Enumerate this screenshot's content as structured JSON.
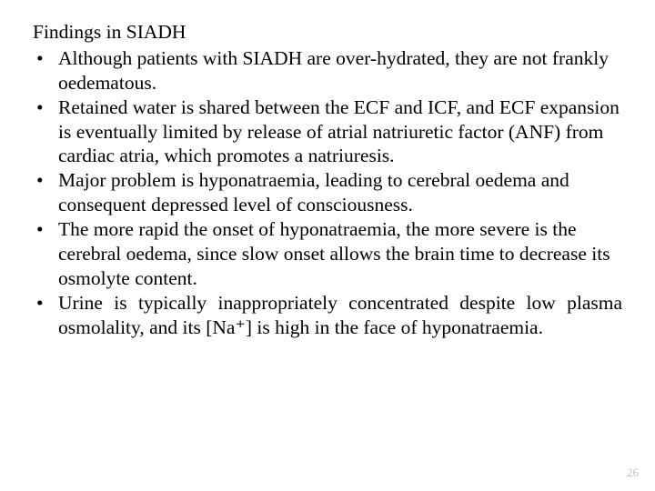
{
  "text_color": "#000000",
  "background_color": "#ffffff",
  "page_number_color": "#bfbfbf",
  "font_family": "Times New Roman",
  "body_fontsize_pt": 16,
  "heading": "Findings in SIADH",
  "bullets": [
    "Although patients with SIADH are over-hydrated, they are not frankly oedematous.",
    "Retained water is shared between the ECF and ICF, and ECF expansion is eventually limited by release of atrial natriuretic factor (ANF) from cardiac atria, which promotes a natriuresis.",
    "Major problem is hyponatraemia, leading to cerebral oedema and consequent depressed level of consciousness.",
    "The more rapid the onset of hyponatraemia, the more severe is the cerebral oedema, since slow onset allows the brain time to decrease its osmolyte content.",
    " Urine is typically inappropriately concentrated despite low plasma osmolality, and its [Na⁺] is high in the face of hyponatraemia."
  ],
  "bullet_align": [
    "left",
    "left",
    "left",
    "left",
    "justify"
  ],
  "page_number": "26"
}
